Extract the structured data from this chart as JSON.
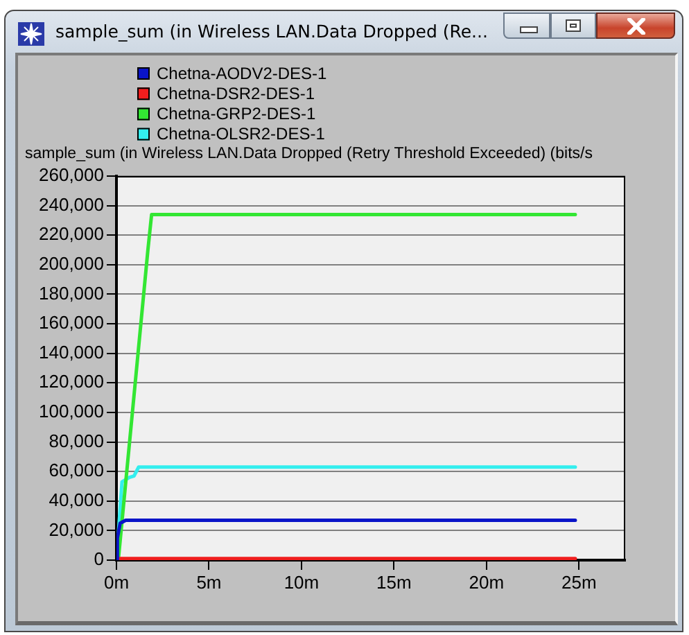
{
  "chart_data": {
    "type": "line",
    "title": "sample_sum (in Wireless LAN.Data Dropped (Re...",
    "ylabel": "sample_sum (in Wireless LAN.Data Dropped (Retry Threshold Exceeded) (bits/s",
    "xlim": [
      0,
      27.5
    ],
    "xticks": [
      {
        "value": 0,
        "label": "0m"
      },
      {
        "value": 5,
        "label": "5m"
      },
      {
        "value": 10,
        "label": "10m"
      },
      {
        "value": 15,
        "label": "15m"
      },
      {
        "value": 20,
        "label": "20m"
      },
      {
        "value": 25,
        "label": "25m"
      }
    ],
    "ylim": [
      0,
      260000
    ],
    "yticks": [
      0,
      {
        "value": 20000,
        "label": "20,000"
      },
      {
        "value": 40000,
        "label": "40,000"
      },
      {
        "value": 60000,
        "label": "60,000"
      },
      {
        "value": 80000,
        "label": "80,000"
      },
      {
        "value": 100000,
        "label": "100,000"
      },
      {
        "value": 120000,
        "label": "120,000"
      },
      {
        "value": 140000,
        "label": "140,000"
      },
      {
        "value": 160000,
        "label": "160,000"
      },
      {
        "value": 180000,
        "label": "180,000"
      },
      {
        "value": 200000,
        "label": "200,000"
      },
      {
        "value": 220000,
        "label": "220,000"
      },
      {
        "value": 240000,
        "label": "240,000"
      },
      {
        "value": 260000,
        "label": "260,000"
      }
    ],
    "grid": "y",
    "legend": "top",
    "series": [
      {
        "name": "Chetna-AODV2-DES-1",
        "color": "#0a14c8",
        "x": [
          0,
          0.05,
          0.2,
          0.5,
          24.8
        ],
        "values": [
          0,
          15000,
          25000,
          27000,
          27000
        ]
      },
      {
        "name": "Chetna-DSR2-DES-1",
        "color": "#f01e1e",
        "x": [
          0,
          24.8
        ],
        "values": [
          1000,
          1000
        ]
      },
      {
        "name": "Chetna-GRP2-DES-1",
        "color": "#33e633",
        "x": [
          0.1,
          1.7,
          1.9,
          24.8
        ],
        "values": [
          0,
          210000,
          234000,
          234000
        ]
      },
      {
        "name": "Chetna-OLSR2-DES-1",
        "color": "#33eeee",
        "x": [
          0,
          0.3,
          0.7,
          0.95,
          1.2,
          24.8
        ],
        "values": [
          0,
          53000,
          56000,
          57000,
          63000,
          63000
        ]
      }
    ]
  }
}
